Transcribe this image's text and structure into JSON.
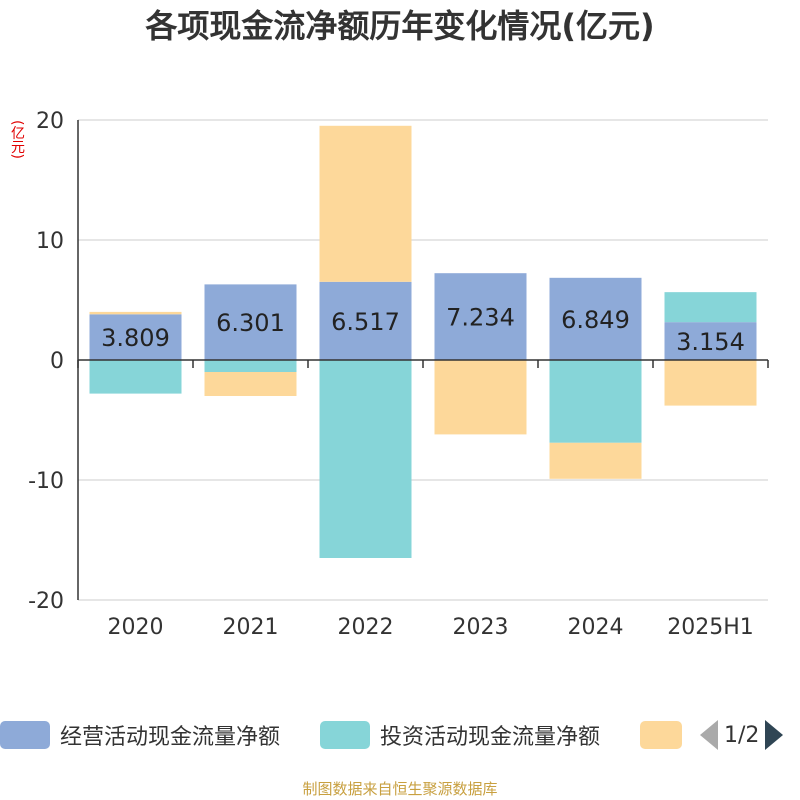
{
  "title": "各项现金流净额历年变化情况(亿元)",
  "unit": "(亿元)",
  "source": "制图数据来自恒生聚源数据库",
  "legend": {
    "items": [
      {
        "label": "经营活动现金流量净额",
        "color": "#8eaad8"
      },
      {
        "label": "投资活动现金流量净额",
        "color": "#86d5d8"
      },
      {
        "label": "",
        "color": "#fdd89a"
      }
    ],
    "pager": "1/2"
  },
  "chart_data": {
    "type": "bar",
    "stacked": true,
    "categories": [
      "2020",
      "2021",
      "2022",
      "2023",
      "2024",
      "2025H1"
    ],
    "ylim": [
      -20,
      20
    ],
    "yticks": [
      20,
      10,
      0,
      -10,
      -20
    ],
    "ytick_labels": [
      "20",
      "10",
      "0",
      "-10",
      "-20"
    ],
    "grid": true,
    "legend_position": "bottom",
    "series": [
      {
        "name": "经营活动现金流量净额",
        "color": "#8eaad8",
        "values": [
          3.809,
          6.301,
          6.517,
          7.234,
          6.849,
          3.154
        ],
        "labels": [
          "3.809",
          "6.301",
          "6.517",
          "7.234",
          "6.849",
          "3.154"
        ]
      },
      {
        "name": "投资活动现金流量净额",
        "color": "#86d5d8",
        "values": [
          -2.8,
          -1.0,
          -16.5,
          0.0,
          -6.9,
          2.5
        ]
      },
      {
        "color": "#fdd89a",
        "values": [
          0.2,
          -2.0,
          13.0,
          -6.2,
          -3.0,
          -3.8
        ]
      }
    ]
  }
}
